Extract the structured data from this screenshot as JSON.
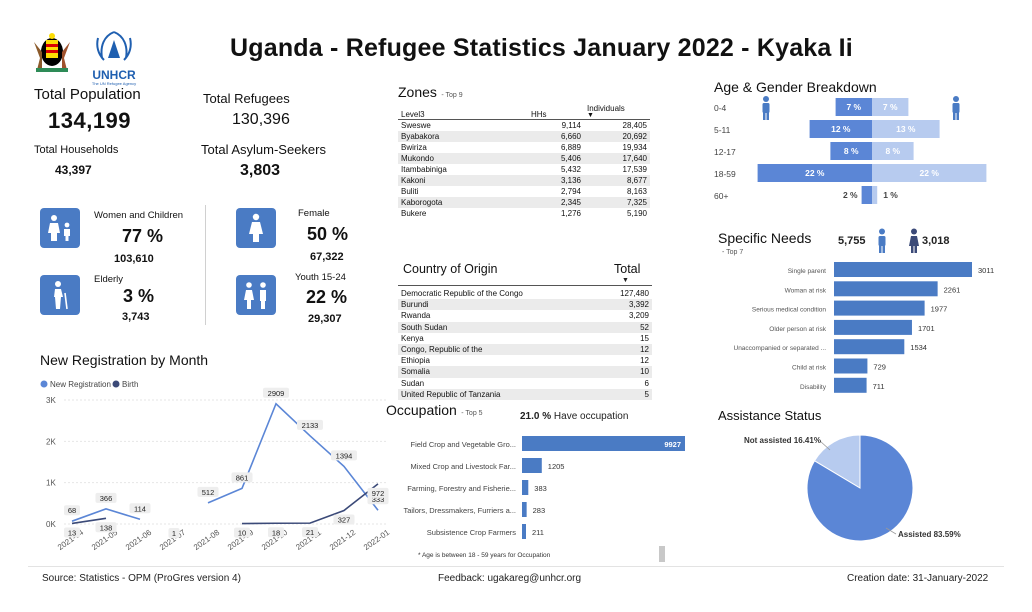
{
  "title": "Uganda - Refugee Statistics January 2022 - Kyaka Ii",
  "logos": {
    "un_text": "UNHCR",
    "un_sub": "The UN Refugee Agency"
  },
  "kpis": {
    "total_population_label": "Total Population",
    "total_population": "134,199",
    "total_households_label": "Total Households",
    "total_households": "43,397",
    "total_refugees_label": "Total Refugees",
    "total_refugees": "130,396",
    "total_asylum_label": "Total Asylum-Seekers",
    "total_asylum": "3,803"
  },
  "stats": [
    {
      "label": "Women and Children",
      "pct": "77 %",
      "num": "103,610",
      "icon": "mother-child-icon"
    },
    {
      "label": "Female",
      "pct": "50 %",
      "num": "67,322",
      "icon": "female-icon"
    },
    {
      "label": "Elderly",
      "pct": "3 %",
      "num": "3,743",
      "icon": "elderly-icon"
    },
    {
      "label": "Youth 15-24",
      "pct": "22 %",
      "num": "29,307",
      "icon": "youth-icon"
    }
  ],
  "zones": {
    "title": "Zones",
    "subtitle": "- Top 9",
    "headers": [
      "Level3",
      "HHs",
      "Individuals"
    ],
    "rows": [
      [
        "Sweswe",
        "9,114",
        "28,405"
      ],
      [
        "Byabakora",
        "6,660",
        "20,692"
      ],
      [
        "Bwiriza",
        "6,889",
        "19,934"
      ],
      [
        "Mukondo",
        "5,406",
        "17,640"
      ],
      [
        "Itambabiniga",
        "5,432",
        "17,539"
      ],
      [
        "Kakoni",
        "3,136",
        "8,677"
      ],
      [
        "Buliti",
        "2,794",
        "8,163"
      ],
      [
        "Kaborogota",
        "2,345",
        "7,325"
      ],
      [
        "Bukere",
        "1,276",
        "5,190"
      ]
    ]
  },
  "origin": {
    "headers": [
      "Country of Origin",
      "Total"
    ],
    "rows": [
      [
        "Democratic Republic of the Congo",
        "127,480"
      ],
      [
        "Burundi",
        "3,392"
      ],
      [
        "Rwanda",
        "3,209"
      ],
      [
        "South Sudan",
        "52"
      ],
      [
        "Kenya",
        "15"
      ],
      [
        "Congo, Republic of the",
        "12"
      ],
      [
        "Ethiopia",
        "12"
      ],
      [
        "Somalia",
        "10"
      ],
      [
        "Sudan",
        "6"
      ],
      [
        "United Republic of Tanzania",
        "5"
      ]
    ]
  },
  "age_gender": {
    "title": "Age & Gender Breakdown",
    "groups": [
      {
        "age": "0-4",
        "male": 7,
        "female": 7
      },
      {
        "age": "5-11",
        "male": 12,
        "female": 13
      },
      {
        "age": "12-17",
        "male": 8,
        "female": 8
      },
      {
        "age": "18-59",
        "male": 22,
        "female": 22
      },
      {
        "age": "60+",
        "male": 2,
        "female": 1
      }
    ],
    "colors": {
      "male": "#5b86d6",
      "female": "#b7cbef"
    }
  },
  "specific_needs": {
    "title": "Specific Needs",
    "subtitle": "- Top 7",
    "male_count": "5,755",
    "female_count": "3,018",
    "items": [
      {
        "label": "Single parent",
        "value": 3011
      },
      {
        "label": "Woman at risk",
        "value": 2261
      },
      {
        "label": "Serious medical condition",
        "value": 1977
      },
      {
        "label": "Older person at risk",
        "value": 1701
      },
      {
        "label": "Unaccompanied or separated ...",
        "value": 1534
      },
      {
        "label": "Child at risk",
        "value": 729
      },
      {
        "label": "Disability",
        "value": 711
      }
    ]
  },
  "assistance": {
    "title": "Assistance Status",
    "slices": [
      {
        "label": "Not assisted 16.41%",
        "value": 16.41,
        "color": "#b7cbef"
      },
      {
        "label": "Assisted 83.59%",
        "value": 83.59,
        "color": "#5b86d6"
      }
    ]
  },
  "occupation": {
    "title": "Occupation",
    "subtitle": "- Top 5",
    "have_pct": "21.0 %",
    "have_label": "Have occupation",
    "note": "* Age is between 18 - 59 years for Occupation",
    "items": [
      {
        "label": "Field Crop and Vegetable Gro...",
        "value": 9927
      },
      {
        "label": "Mixed Crop and Livestock Far...",
        "value": 1205
      },
      {
        "label": "Farming, Forestry and Fisherie...",
        "value": 383
      },
      {
        "label": "Tailors, Dressmakers, Furriers a...",
        "value": 283
      },
      {
        "label": "Subsistence Crop Farmers",
        "value": 211
      }
    ]
  },
  "chart_data": {
    "type": "line",
    "title": "New Registration by Month",
    "categories": [
      "2021-04",
      "2021-05",
      "2021-06",
      "2021-07",
      "2021-08",
      "2021-09",
      "2021-10",
      "2021-11",
      "2021-12",
      "2022-01"
    ],
    "y_ticks": [
      "0K",
      "1K",
      "2K",
      "3K"
    ],
    "ylim": [
      0,
      3000
    ],
    "legend": "top-left",
    "series": [
      {
        "name": "New Registration",
        "color": "#5b86d6",
        "values": [
          68,
          366,
          114,
          null,
          512,
          861,
          2909,
          2133,
          1394,
          333
        ]
      },
      {
        "name": "Birth",
        "color": "#3b4a78",
        "values": [
          13,
          138,
          null,
          1,
          null,
          10,
          18,
          21,
          327,
          972
        ]
      }
    ]
  },
  "footer": {
    "source": "Source: Statistics - OPM (ProGres version 4)",
    "feedback": "Feedback: ugakareg@unhcr.org",
    "created": "Creation date: 31-January-2022"
  }
}
